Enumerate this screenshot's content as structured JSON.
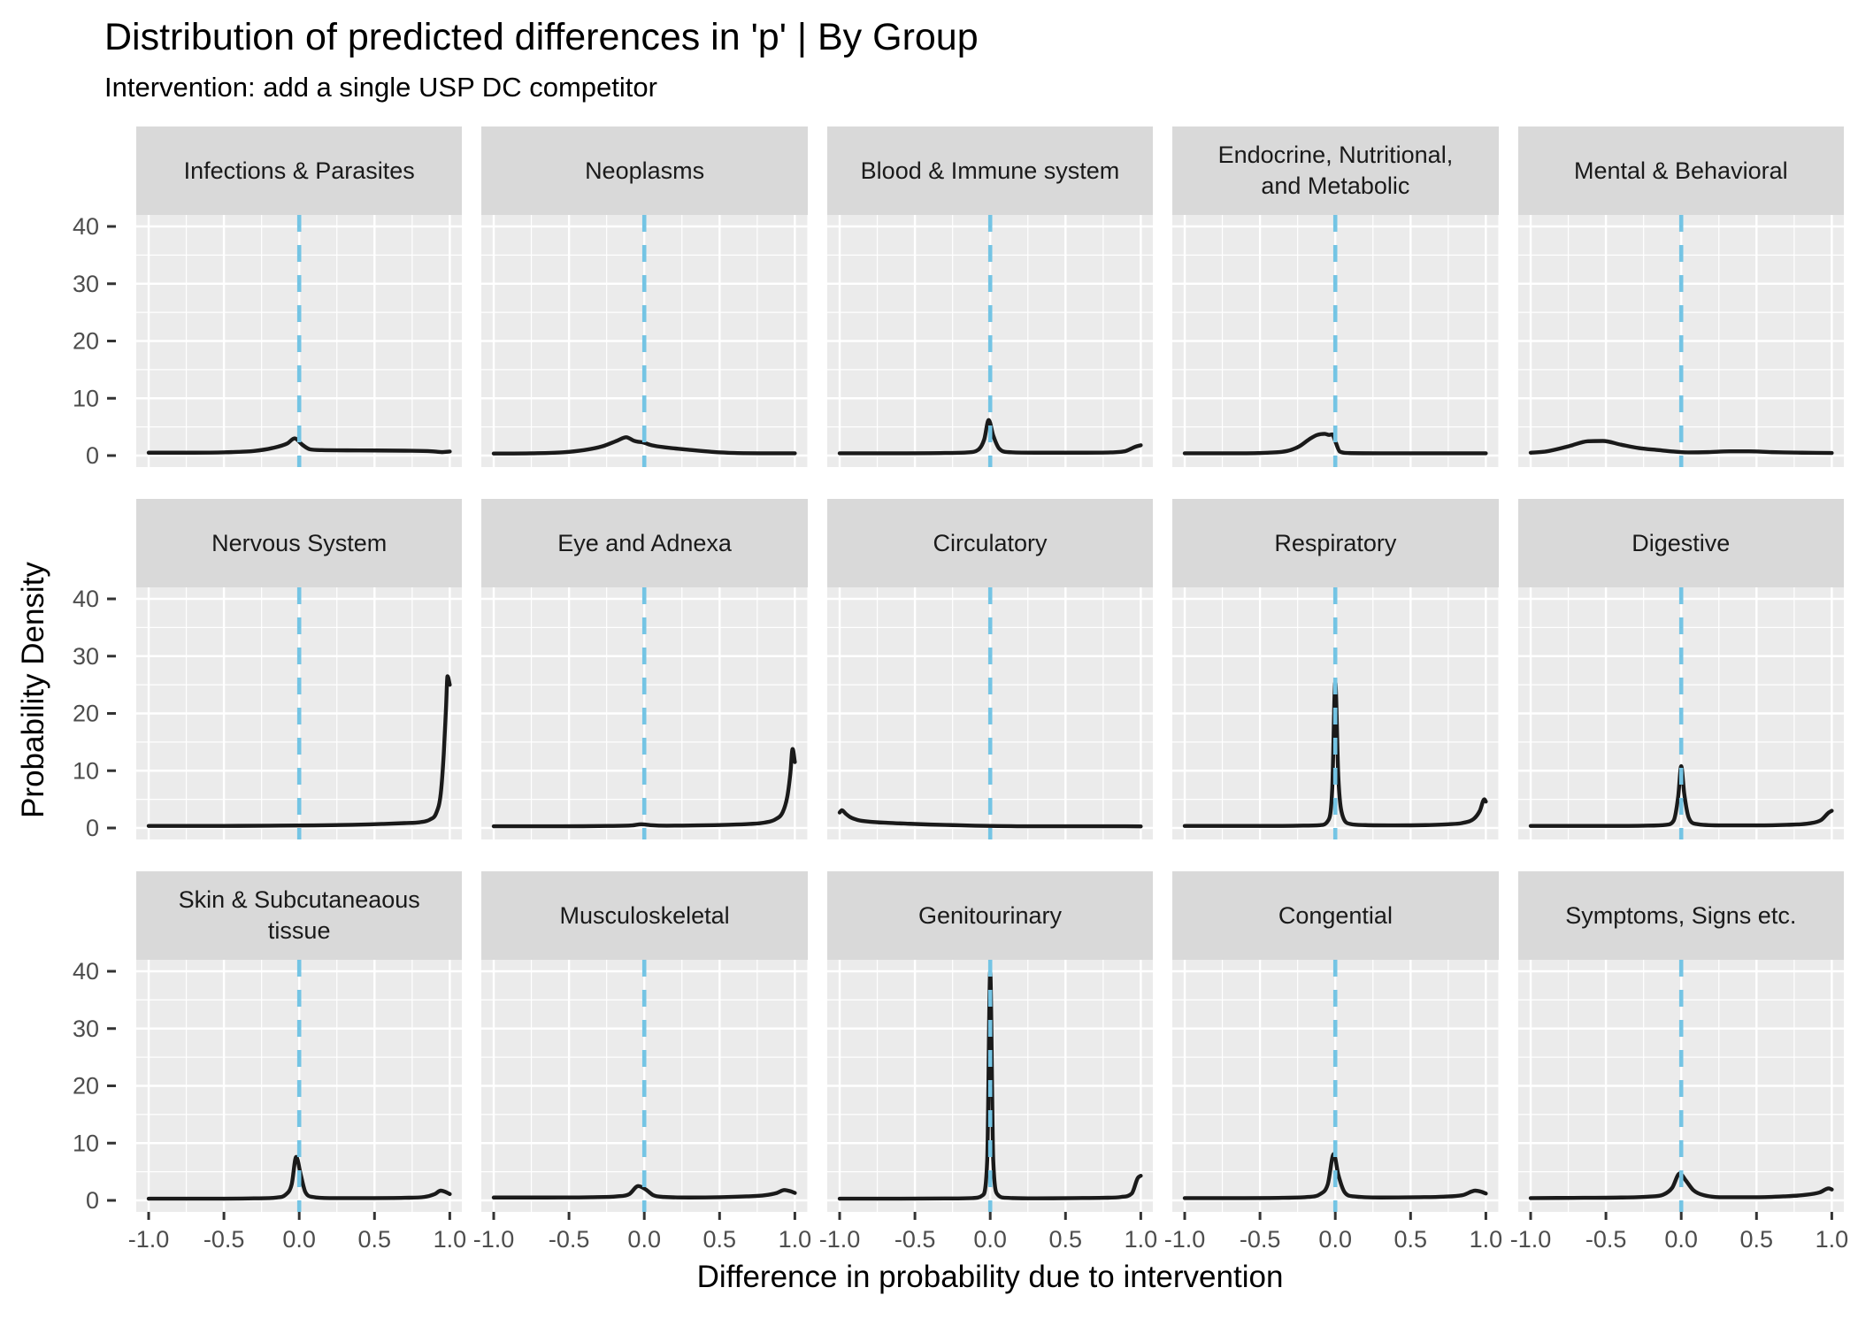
{
  "title": "Distribution of predicted differences in 'p' | By Group",
  "subtitle": "Intervention: add a single USP DC competitor",
  "colors": {
    "panel_background": "#ebebeb",
    "strip_background": "#d9d9d9",
    "gridline": "#ffffff",
    "curve": "#1a1a1a",
    "vline": "#74c4e4",
    "tick_text": "#4d4d4d",
    "tick_mark": "#333333"
  },
  "chart_data": {
    "type": "line",
    "description": "Faceted density curves (3 rows x 5 columns), one per diagnosis group",
    "grid": {
      "rows": 3,
      "cols": 5
    },
    "x_axis": {
      "label": "Difference in probability due to intervention",
      "range": [
        -1,
        1
      ],
      "tick_values": [
        -1,
        -0.5,
        0,
        0.5,
        1
      ],
      "tick_labels": [
        "-1.0",
        "-0.5",
        "0.0",
        "0.5",
        "1.0"
      ],
      "minor_ticks": [
        -0.75,
        -0.25,
        0.25,
        0.75
      ]
    },
    "y_axis": {
      "label": "Probability Density",
      "range": [
        0,
        40
      ],
      "tick_values": [
        0,
        10,
        20,
        30,
        40
      ],
      "tick_labels": [
        "0",
        "10",
        "20",
        "30",
        "40"
      ],
      "minor_ticks": [
        5,
        15,
        25,
        35
      ]
    },
    "vline": {
      "x": 0,
      "style": "dashed",
      "color": "#74c4e4"
    },
    "legend": "none",
    "facets": [
      {
        "label": "Infections & Parasites",
        "density": [
          [
            -1,
            0.5
          ],
          [
            -0.7,
            0.5
          ],
          [
            -0.45,
            0.6
          ],
          [
            -0.3,
            0.8
          ],
          [
            -0.18,
            1.3
          ],
          [
            -0.08,
            2.1
          ],
          [
            -0.03,
            3.0
          ],
          [
            0.02,
            1.9
          ],
          [
            0.07,
            1.1
          ],
          [
            0.15,
            0.95
          ],
          [
            0.4,
            0.9
          ],
          [
            0.7,
            0.85
          ],
          [
            0.88,
            0.75
          ],
          [
            0.95,
            0.6
          ],
          [
            1,
            0.7
          ]
        ]
      },
      {
        "label": "Neoplasms",
        "density": [
          [
            -1,
            0.35
          ],
          [
            -0.75,
            0.4
          ],
          [
            -0.55,
            0.55
          ],
          [
            -0.4,
            0.95
          ],
          [
            -0.28,
            1.6
          ],
          [
            -0.18,
            2.6
          ],
          [
            -0.12,
            3.2
          ],
          [
            -0.07,
            2.6
          ],
          [
            -0.04,
            2.4
          ],
          [
            -0.01,
            2.3
          ],
          [
            0.05,
            1.8
          ],
          [
            0.15,
            1.4
          ],
          [
            0.3,
            1.0
          ],
          [
            0.45,
            0.65
          ],
          [
            0.6,
            0.45
          ],
          [
            0.8,
            0.4
          ],
          [
            1,
            0.4
          ]
        ]
      },
      {
        "label": "Blood & Immune system",
        "density": [
          [
            -1,
            0.4
          ],
          [
            -0.6,
            0.4
          ],
          [
            -0.3,
            0.45
          ],
          [
            -0.15,
            0.55
          ],
          [
            -0.08,
            1.0
          ],
          [
            -0.04,
            2.8
          ],
          [
            -0.01,
            6.2
          ],
          [
            0.02,
            3.5
          ],
          [
            0.06,
            1.2
          ],
          [
            0.12,
            0.6
          ],
          [
            0.3,
            0.5
          ],
          [
            0.6,
            0.5
          ],
          [
            0.8,
            0.55
          ],
          [
            0.9,
            0.8
          ],
          [
            0.96,
            1.5
          ],
          [
            1,
            1.8
          ]
        ]
      },
      {
        "label": "Endocrine, Nutritional,\nand Metabolic",
        "density": [
          [
            -1,
            0.4
          ],
          [
            -0.65,
            0.4
          ],
          [
            -0.45,
            0.5
          ],
          [
            -0.32,
            0.8
          ],
          [
            -0.24,
            1.6
          ],
          [
            -0.17,
            2.9
          ],
          [
            -0.12,
            3.6
          ],
          [
            -0.07,
            3.8
          ],
          [
            -0.04,
            3.6
          ],
          [
            -0.02,
            3.7
          ],
          [
            0,
            2.5
          ],
          [
            0.03,
            0.7
          ],
          [
            0.08,
            0.45
          ],
          [
            0.3,
            0.4
          ],
          [
            0.6,
            0.4
          ],
          [
            1,
            0.4
          ]
        ]
      },
      {
        "label": "Mental & Behavioral",
        "density": [
          [
            -1,
            0.5
          ],
          [
            -0.9,
            0.7
          ],
          [
            -0.75,
            1.6
          ],
          [
            -0.62,
            2.5
          ],
          [
            -0.52,
            2.55
          ],
          [
            -0.4,
            1.9
          ],
          [
            -0.28,
            1.3
          ],
          [
            -0.15,
            0.95
          ],
          [
            -0.05,
            0.7
          ],
          [
            0.05,
            0.55
          ],
          [
            0.18,
            0.6
          ],
          [
            0.32,
            0.75
          ],
          [
            0.45,
            0.75
          ],
          [
            0.6,
            0.6
          ],
          [
            0.8,
            0.5
          ],
          [
            1,
            0.45
          ]
        ]
      },
      {
        "label": "Nervous System",
        "density": [
          [
            -1,
            0.35
          ],
          [
            -0.6,
            0.35
          ],
          [
            -0.2,
            0.4
          ],
          [
            0.1,
            0.45
          ],
          [
            0.35,
            0.55
          ],
          [
            0.55,
            0.7
          ],
          [
            0.7,
            0.85
          ],
          [
            0.8,
            1.0
          ],
          [
            0.87,
            1.5
          ],
          [
            0.91,
            2.6
          ],
          [
            0.94,
            6
          ],
          [
            0.96,
            13
          ],
          [
            0.975,
            21
          ],
          [
            0.985,
            26.5
          ],
          [
            1,
            25
          ]
        ]
      },
      {
        "label": "Eye and Adnexa",
        "density": [
          [
            -1,
            0.3
          ],
          [
            -0.6,
            0.3
          ],
          [
            -0.25,
            0.35
          ],
          [
            -0.08,
            0.45
          ],
          [
            -0.02,
            0.65
          ],
          [
            0.04,
            0.5
          ],
          [
            0.15,
            0.4
          ],
          [
            0.35,
            0.45
          ],
          [
            0.55,
            0.55
          ],
          [
            0.7,
            0.7
          ],
          [
            0.8,
            0.95
          ],
          [
            0.87,
            1.5
          ],
          [
            0.92,
            2.8
          ],
          [
            0.95,
            5.5
          ],
          [
            0.97,
            9.5
          ],
          [
            0.985,
            13.8
          ],
          [
            1,
            11.5
          ]
        ]
      },
      {
        "label": "Circulatory",
        "density": [
          [
            -1,
            2.7
          ],
          [
            -0.985,
            3.1
          ],
          [
            -0.96,
            2.5
          ],
          [
            -0.93,
            1.9
          ],
          [
            -0.88,
            1.4
          ],
          [
            -0.8,
            1.1
          ],
          [
            -0.68,
            0.9
          ],
          [
            -0.55,
            0.75
          ],
          [
            -0.4,
            0.6
          ],
          [
            -0.25,
            0.5
          ],
          [
            -0.1,
            0.4
          ],
          [
            0.05,
            0.33
          ],
          [
            0.3,
            0.3
          ],
          [
            0.6,
            0.3
          ],
          [
            0.8,
            0.3
          ],
          [
            1,
            0.28
          ]
        ]
      },
      {
        "label": "Respiratory",
        "density": [
          [
            -1,
            0.35
          ],
          [
            -0.6,
            0.35
          ],
          [
            -0.25,
            0.4
          ],
          [
            -0.1,
            0.5
          ],
          [
            -0.05,
            1.2
          ],
          [
            -0.02,
            7
          ],
          [
            0,
            25.5
          ],
          [
            0.02,
            9
          ],
          [
            0.05,
            2
          ],
          [
            0.1,
            0.7
          ],
          [
            0.2,
            0.5
          ],
          [
            0.4,
            0.45
          ],
          [
            0.6,
            0.5
          ],
          [
            0.75,
            0.65
          ],
          [
            0.85,
            0.9
          ],
          [
            0.92,
            1.6
          ],
          [
            0.96,
            3
          ],
          [
            0.99,
            5
          ],
          [
            1,
            4.6
          ]
        ]
      },
      {
        "label": "Digestive",
        "density": [
          [
            -1,
            0.35
          ],
          [
            -0.6,
            0.35
          ],
          [
            -0.25,
            0.4
          ],
          [
            -0.1,
            0.55
          ],
          [
            -0.05,
            1.3
          ],
          [
            -0.02,
            5.5
          ],
          [
            0,
            10.8
          ],
          [
            0.02,
            6
          ],
          [
            0.05,
            1.8
          ],
          [
            0.1,
            0.7
          ],
          [
            0.25,
            0.45
          ],
          [
            0.5,
            0.45
          ],
          [
            0.7,
            0.55
          ],
          [
            0.85,
            0.8
          ],
          [
            0.93,
            1.4
          ],
          [
            0.98,
            2.7
          ],
          [
            1,
            3.0
          ]
        ]
      },
      {
        "label": "Skin & Subcutaneaous\ntissue",
        "density": [
          [
            -1,
            0.3
          ],
          [
            -0.6,
            0.3
          ],
          [
            -0.3,
            0.35
          ],
          [
            -0.15,
            0.5
          ],
          [
            -0.09,
            1.0
          ],
          [
            -0.05,
            2.8
          ],
          [
            -0.02,
            7.6
          ],
          [
            0.01,
            4.5
          ],
          [
            0.04,
            1.5
          ],
          [
            0.09,
            0.6
          ],
          [
            0.2,
            0.4
          ],
          [
            0.45,
            0.4
          ],
          [
            0.7,
            0.45
          ],
          [
            0.83,
            0.6
          ],
          [
            0.9,
            1.1
          ],
          [
            0.94,
            1.7
          ],
          [
            0.97,
            1.5
          ],
          [
            1,
            1.1
          ]
        ]
      },
      {
        "label": "Musculoskeletal",
        "density": [
          [
            -1,
            0.5
          ],
          [
            -0.65,
            0.5
          ],
          [
            -0.35,
            0.55
          ],
          [
            -0.18,
            0.7
          ],
          [
            -0.1,
            1.1
          ],
          [
            -0.04,
            2.5
          ],
          [
            0.01,
            1.9
          ],
          [
            0.06,
            0.9
          ],
          [
            0.13,
            0.6
          ],
          [
            0.3,
            0.5
          ],
          [
            0.5,
            0.55
          ],
          [
            0.68,
            0.7
          ],
          [
            0.8,
            0.9
          ],
          [
            0.88,
            1.3
          ],
          [
            0.93,
            1.8
          ],
          [
            0.97,
            1.6
          ],
          [
            1,
            1.3
          ]
        ]
      },
      {
        "label": "Genitourinary",
        "density": [
          [
            -1,
            0.3
          ],
          [
            -0.6,
            0.3
          ],
          [
            -0.3,
            0.33
          ],
          [
            -0.12,
            0.4
          ],
          [
            -0.05,
            0.9
          ],
          [
            -0.02,
            7
          ],
          [
            0,
            40
          ],
          [
            0.02,
            7
          ],
          [
            0.05,
            1.0
          ],
          [
            0.1,
            0.45
          ],
          [
            0.3,
            0.35
          ],
          [
            0.55,
            0.4
          ],
          [
            0.75,
            0.45
          ],
          [
            0.87,
            0.6
          ],
          [
            0.94,
            1.2
          ],
          [
            0.98,
            3.9
          ],
          [
            1,
            4.3
          ]
        ]
      },
      {
        "label": "Congential",
        "density": [
          [
            -1,
            0.4
          ],
          [
            -0.65,
            0.4
          ],
          [
            -0.35,
            0.45
          ],
          [
            -0.18,
            0.6
          ],
          [
            -0.1,
            1.1
          ],
          [
            -0.05,
            2.8
          ],
          [
            -0.01,
            8.1
          ],
          [
            0.02,
            4.5
          ],
          [
            0.06,
            1.5
          ],
          [
            0.12,
            0.7
          ],
          [
            0.3,
            0.5
          ],
          [
            0.55,
            0.55
          ],
          [
            0.72,
            0.65
          ],
          [
            0.85,
            0.95
          ],
          [
            0.93,
            1.7
          ],
          [
            0.97,
            1.5
          ],
          [
            1,
            1.2
          ]
        ]
      },
      {
        "label": "Symptoms, Signs etc.",
        "density": [
          [
            -1,
            0.4
          ],
          [
            -0.65,
            0.45
          ],
          [
            -0.4,
            0.5
          ],
          [
            -0.22,
            0.65
          ],
          [
            -0.12,
            1.0
          ],
          [
            -0.06,
            2.2
          ],
          [
            -0.01,
            4.7
          ],
          [
            0.03,
            3.5
          ],
          [
            0.08,
            1.8
          ],
          [
            0.15,
            0.9
          ],
          [
            0.3,
            0.55
          ],
          [
            0.5,
            0.55
          ],
          [
            0.68,
            0.7
          ],
          [
            0.82,
            0.95
          ],
          [
            0.92,
            1.4
          ],
          [
            0.98,
            2.1
          ],
          [
            1,
            1.9
          ]
        ]
      }
    ]
  }
}
